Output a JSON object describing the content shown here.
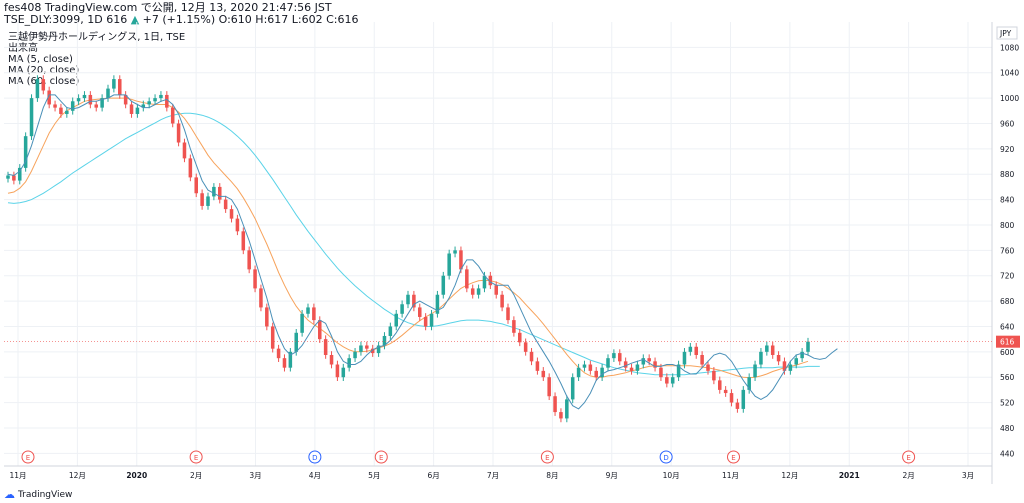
{
  "header": {
    "line1": "fes408 TradingView.com で公開, 12月 13, 2020 21:47:56 JST",
    "line2_symbol": "TSE_DLY:3099, 1D 616",
    "line2_change": "+7 (+1.15%)",
    "line2_ohlc": "O:610 H:617 L:602 C:616"
  },
  "legend": {
    "title": "三越伊勢丹ホールディングス, 1日, TSE",
    "items": [
      "出来高",
      "MA (5, close)",
      "MA (20, close)",
      "MA (60, close)"
    ]
  },
  "footer": {
    "logo_text": "TradingView"
  },
  "colors": {
    "up": "#26a69a",
    "down": "#ef5350",
    "ma5": "#4a90b8",
    "ma20": "#f7a35c",
    "ma60": "#5ad3e8",
    "grid": "#eef1f5",
    "current": "#ef5350"
  },
  "chart_data": {
    "type": "candlestick",
    "title": "三越伊勢丹ホールディングス, 1日, TSE",
    "currency": "JPY",
    "ylim": [
      420,
      1120
    ],
    "y_ticks": [
      440,
      480,
      520,
      560,
      600,
      640,
      680,
      720,
      760,
      800,
      840,
      880,
      920,
      960,
      1000,
      1040,
      1080
    ],
    "current_price": 616,
    "x_ticks": [
      "11月",
      "12月",
      "2020",
      "2月",
      "3月",
      "4月",
      "5月",
      "6月",
      "7月",
      "8月",
      "9月",
      "10月",
      "11月",
      "12月",
      "2021",
      "2月",
      "3月"
    ],
    "events": [
      {
        "label": "E",
        "month": "11月"
      },
      {
        "label": "E",
        "month": "2月"
      },
      {
        "label": "D",
        "month": "4月"
      },
      {
        "label": "E",
        "month": "5月"
      },
      {
        "label": "E",
        "month": "8月"
      },
      {
        "label": "D",
        "month": "10月"
      },
      {
        "label": "E",
        "month": "11月"
      },
      {
        "label": "E",
        "month": "2月"
      }
    ],
    "close_series": [
      878,
      870,
      890,
      940,
      1000,
      1030,
      1012,
      990,
      985,
      975,
      980,
      995,
      1000,
      1005,
      990,
      985,
      1000,
      1015,
      1030,
      1005,
      990,
      975,
      985,
      990,
      995,
      1000,
      1005,
      985,
      960,
      930,
      905,
      875,
      850,
      830,
      845,
      860,
      840,
      825,
      810,
      790,
      760,
      730,
      700,
      670,
      640,
      605,
      590,
      575,
      600,
      630,
      660,
      670,
      650,
      620,
      595,
      580,
      560,
      575,
      590,
      600,
      610,
      605,
      598,
      610,
      625,
      640,
      660,
      675,
      690,
      670,
      655,
      640,
      660,
      690,
      720,
      755,
      760,
      730,
      700,
      690,
      700,
      720,
      705,
      690,
      670,
      650,
      630,
      615,
      600,
      585,
      570,
      560,
      530,
      505,
      495,
      525,
      560,
      575,
      580,
      570,
      560,
      575,
      590,
      598,
      585,
      575,
      570,
      580,
      590,
      585,
      575,
      560,
      550,
      560,
      580,
      600,
      608,
      595,
      580,
      570,
      555,
      540,
      535,
      520,
      510,
      540,
      560,
      580,
      600,
      610,
      595,
      585,
      570,
      580,
      590,
      600,
      616
    ],
    "ma5_series": [
      880,
      878,
      885,
      900,
      925,
      955,
      985,
      1005,
      1005,
      995,
      985,
      983,
      985,
      990,
      995,
      995,
      998,
      1000,
      1005,
      1005,
      1005,
      995,
      990,
      985,
      985,
      990,
      995,
      998,
      990,
      975,
      950,
      920,
      895,
      870,
      855,
      850,
      845,
      845,
      840,
      825,
      800,
      775,
      745,
      715,
      685,
      650,
      625,
      605,
      595,
      600,
      610,
      625,
      640,
      650,
      645,
      625,
      600,
      585,
      580,
      580,
      585,
      595,
      603,
      608,
      610,
      618,
      630,
      645,
      660,
      675,
      680,
      675,
      670,
      665,
      670,
      685,
      705,
      730,
      745,
      745,
      735,
      720,
      710,
      705,
      705,
      705,
      690,
      670,
      650,
      630,
      615,
      600,
      585,
      568,
      550,
      530,
      515,
      510,
      520,
      535,
      555,
      565,
      570,
      572,
      575,
      578,
      582,
      585,
      588,
      582,
      577,
      577,
      580,
      580,
      577,
      570,
      565,
      565,
      575,
      585,
      595,
      598,
      595,
      585,
      570,
      555,
      542,
      530,
      525,
      530,
      540,
      555,
      570,
      585,
      595,
      598,
      595,
      590,
      588,
      590,
      598,
      605
    ],
    "ma20_series": [
      850,
      852,
      858,
      868,
      885,
      905,
      925,
      945,
      960,
      972,
      980,
      985,
      990,
      995,
      997,
      998,
      999,
      1000,
      1000,
      1000,
      1000,
      998,
      995,
      993,
      991,
      990,
      990,
      990,
      985,
      978,
      968,
      955,
      940,
      925,
      910,
      898,
      888,
      878,
      868,
      857,
      843,
      827,
      810,
      790,
      770,
      748,
      725,
      705,
      687,
      672,
      660,
      650,
      643,
      637,
      630,
      622,
      614,
      608,
      603,
      600,
      600,
      601,
      603,
      606,
      609,
      613,
      619,
      626,
      634,
      642,
      649,
      655,
      660,
      666,
      674,
      683,
      692,
      700,
      705,
      709,
      712,
      713,
      712,
      710,
      706,
      700,
      693,
      685,
      675,
      665,
      655,
      644,
      632,
      620,
      608,
      596,
      585,
      575,
      567,
      562,
      560,
      560,
      562,
      563,
      565,
      567,
      570,
      572,
      575,
      577,
      578,
      578,
      578,
      578,
      578,
      578,
      578,
      577,
      576,
      575,
      573,
      571,
      568,
      565,
      562,
      560,
      559,
      560,
      562,
      565,
      569,
      572,
      575,
      577,
      579,
      582,
      585
    ],
    "ma60_series": [
      835,
      834,
      835,
      837,
      840,
      845,
      850,
      856,
      862,
      868,
      875,
      882,
      888,
      894,
      900,
      906,
      912,
      918,
      924,
      930,
      936,
      941,
      946,
      951,
      956,
      961,
      966,
      970,
      973,
      975,
      976,
      976,
      975,
      973,
      970,
      966,
      961,
      955,
      948,
      940,
      931,
      921,
      910,
      898,
      885,
      872,
      858,
      844,
      830,
      816,
      803,
      790,
      778,
      766,
      754,
      743,
      732,
      722,
      713,
      704,
      696,
      688,
      681,
      674,
      667,
      661,
      655,
      650,
      646,
      643,
      641,
      640,
      640,
      641,
      643,
      645,
      647,
      649,
      650,
      650,
      650,
      649,
      648,
      646,
      644,
      641,
      638,
      635,
      631,
      627,
      623,
      619,
      615,
      611,
      607,
      603,
      599,
      595,
      591,
      587,
      584,
      581,
      578,
      575,
      573,
      571,
      569,
      567,
      566,
      565,
      564,
      564,
      564,
      564,
      564,
      564,
      565,
      566,
      567,
      568,
      569,
      570,
      571,
      572,
      573,
      574,
      575,
      575,
      575,
      575,
      575,
      576,
      576,
      576,
      576,
      576,
      577,
      577,
      577
    ]
  }
}
